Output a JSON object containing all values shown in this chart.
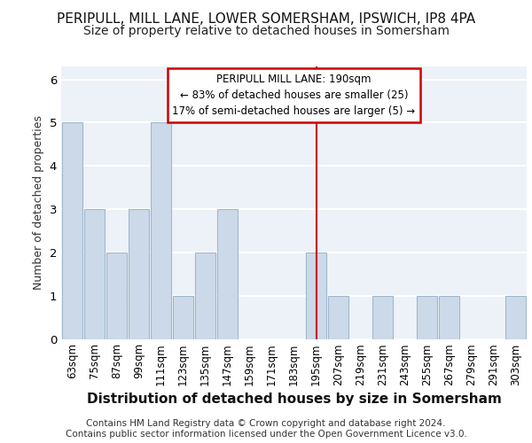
{
  "title1": "PERIPULL, MILL LANE, LOWER SOMERSHAM, IPSWICH, IP8 4PA",
  "title2": "Size of property relative to detached houses in Somersham",
  "xlabel": "Distribution of detached houses by size in Somersham",
  "ylabel": "Number of detached properties",
  "footer1": "Contains HM Land Registry data © Crown copyright and database right 2024.",
  "footer2": "Contains public sector information licensed under the Open Government Licence v3.0.",
  "categories": [
    "63sqm",
    "75sqm",
    "87sqm",
    "99sqm",
    "111sqm",
    "123sqm",
    "135sqm",
    "147sqm",
    "159sqm",
    "171sqm",
    "183sqm",
    "195sqm",
    "207sqm",
    "219sqm",
    "231sqm",
    "243sqm",
    "255sqm",
    "267sqm",
    "279sqm",
    "291sqm",
    "303sqm"
  ],
  "values": [
    5,
    3,
    2,
    3,
    5,
    1,
    2,
    3,
    0,
    0,
    0,
    2,
    1,
    0,
    1,
    0,
    1,
    1,
    0,
    0,
    1
  ],
  "bar_color": "#ccd9e8",
  "bar_edge_color": "#a0b8cc",
  "property_line_index": 11,
  "annotation_text1": "PERIPULL MILL LANE: 190sqm",
  "annotation_text2": "← 83% of detached houses are smaller (25)",
  "annotation_text3": "17% of semi-detached houses are larger (5) →",
  "annotation_box_color": "#ffffff",
  "annotation_border_color": "#cc0000",
  "vline_color": "#cc0000",
  "ylim": [
    0,
    6.3
  ],
  "yticks": [
    0,
    1,
    2,
    3,
    4,
    5,
    6
  ],
  "background_color": "#edf2f8",
  "grid_color": "#ffffff",
  "title_fontsize": 11,
  "subtitle_fontsize": 10,
  "xlabel_fontsize": 11,
  "ylabel_fontsize": 9,
  "tick_fontsize": 8.5,
  "footer_fontsize": 7.5,
  "annotation_fontsize": 8.5
}
